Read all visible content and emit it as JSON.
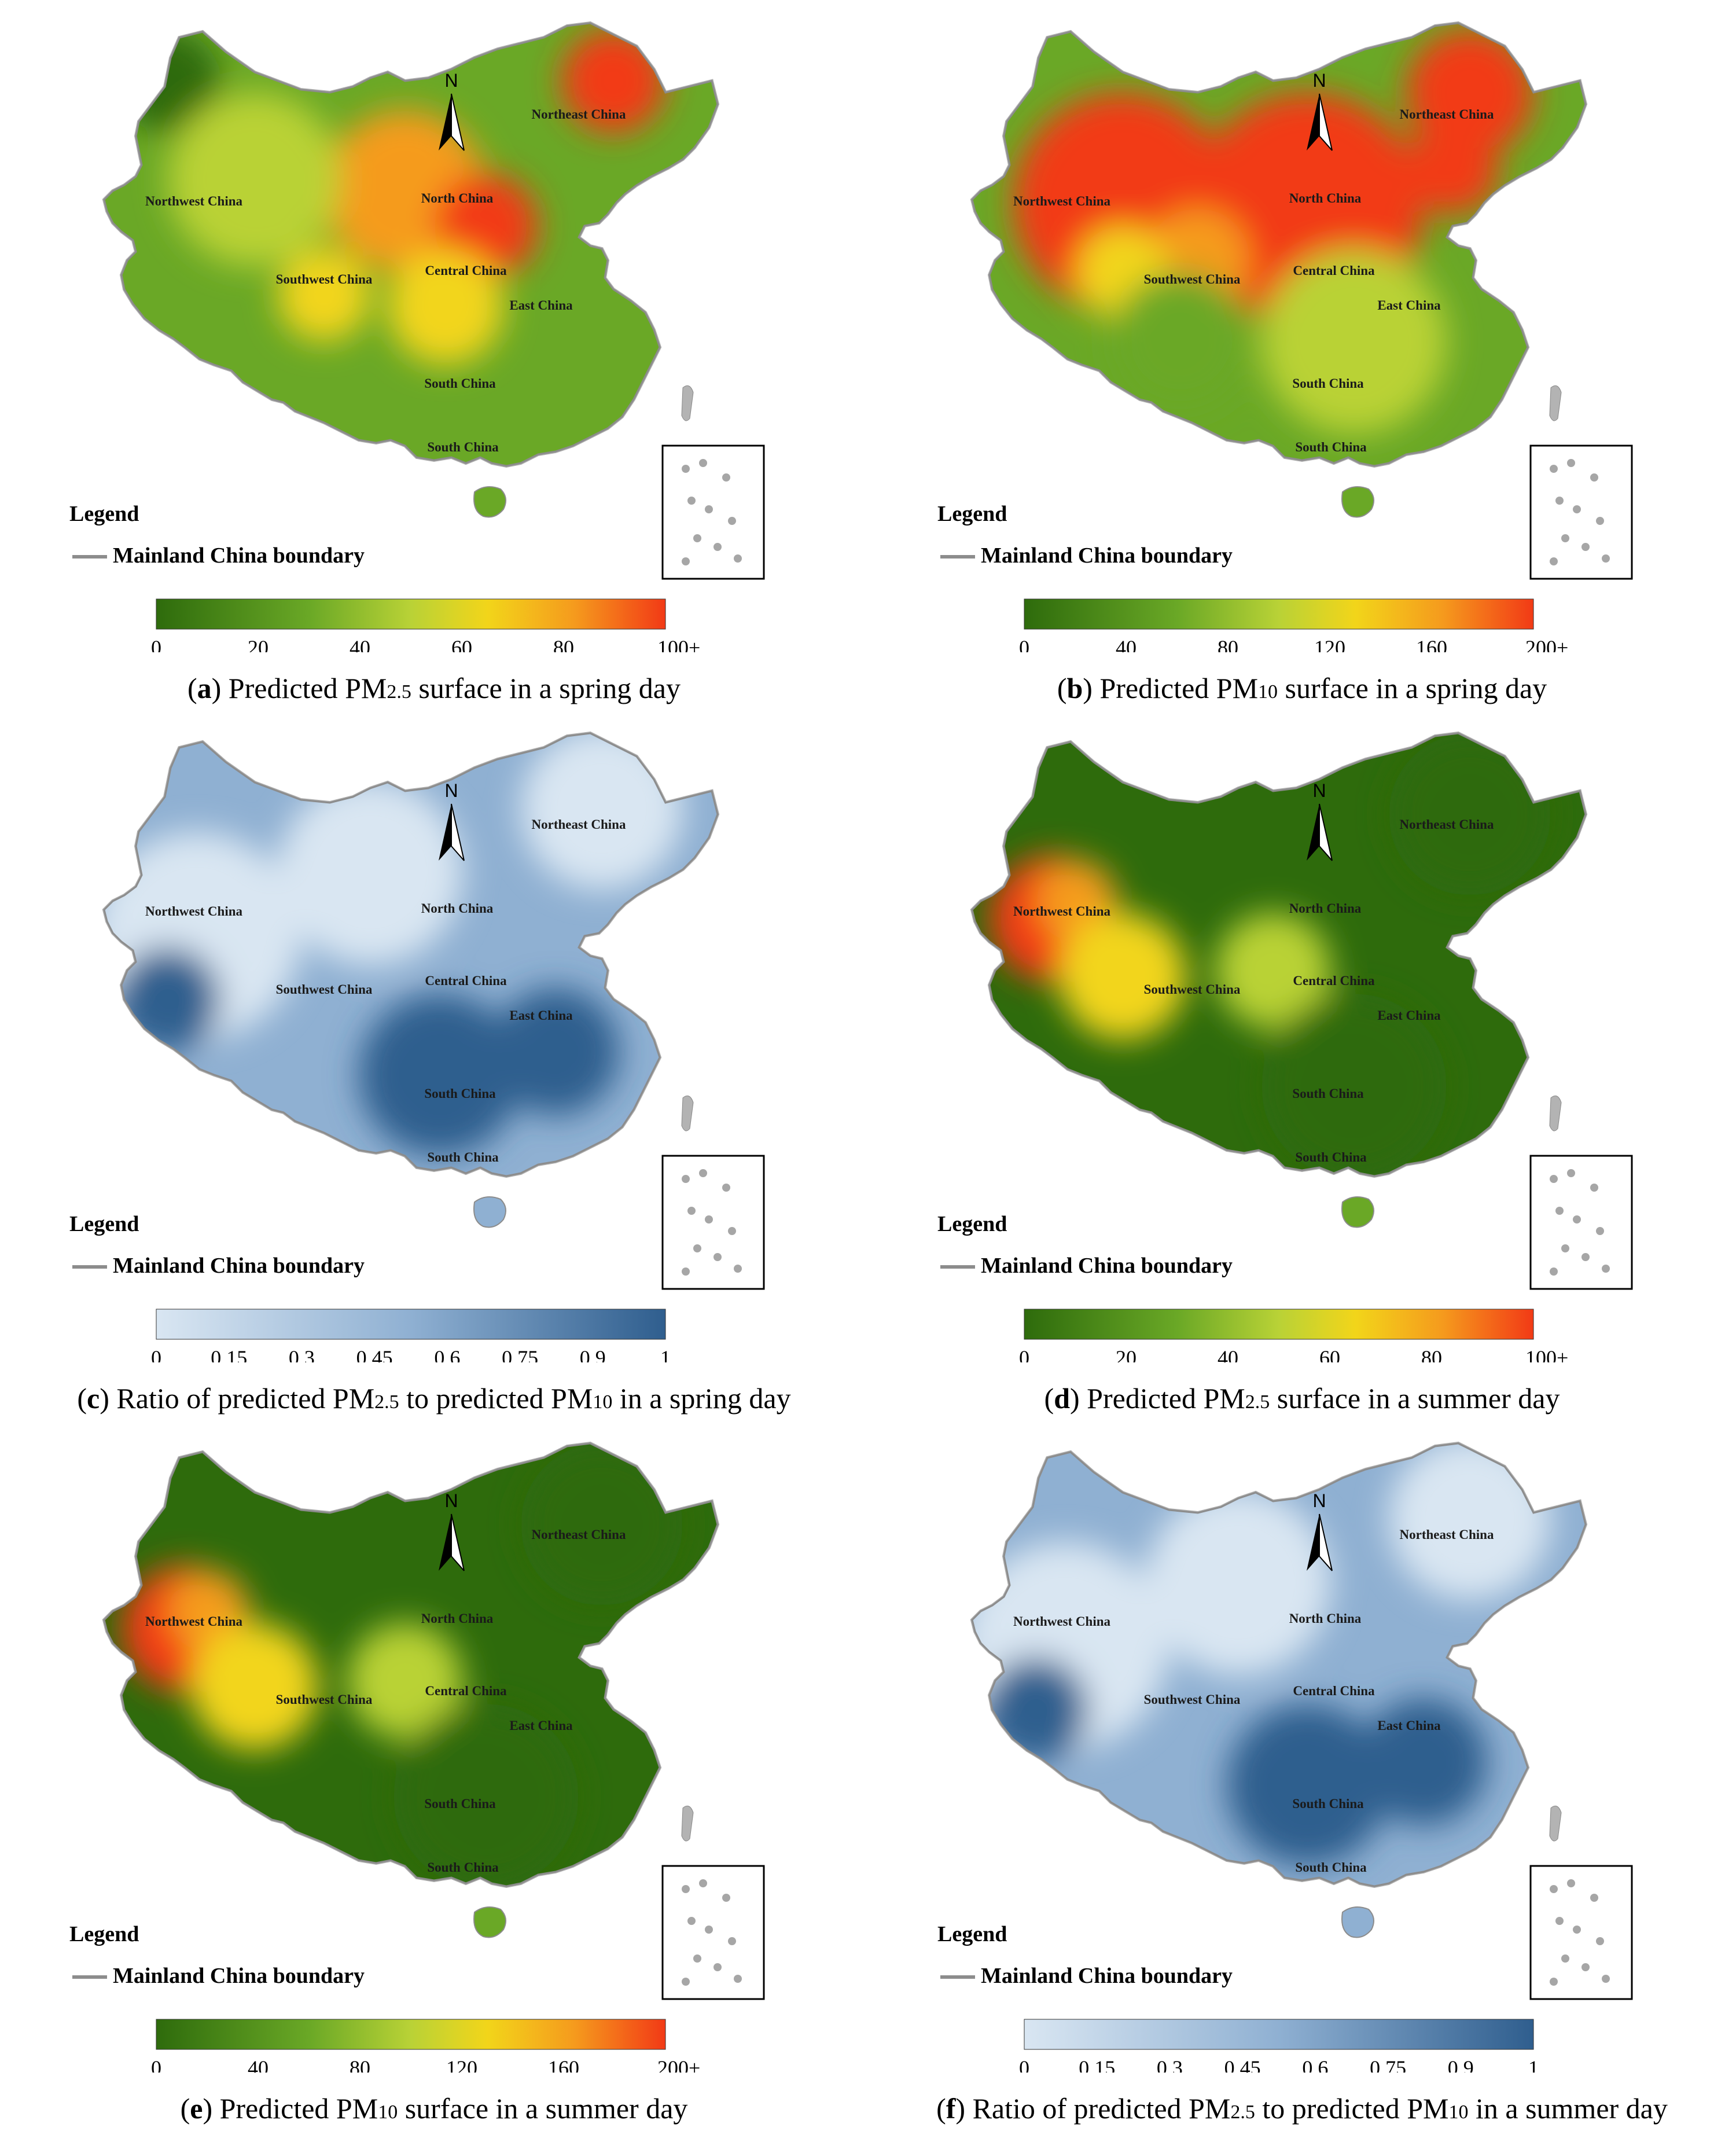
{
  "panels": [
    {
      "id": "a",
      "letter": "a",
      "caption_pre": "Predicted PM",
      "caption_sub": "2.5",
      "caption_mid": " surface in a spring day",
      "caption_sub2": "",
      "caption_post": "",
      "ramp": "green-red",
      "ticks": [
        "0",
        "20",
        "40",
        "60",
        "80",
        "100+"
      ],
      "region_labels": [
        "Northeast China",
        "Northwest China",
        "North China",
        "Southwest China",
        "Central China",
        "East China",
        "South China",
        "South China"
      ],
      "hot_level": "medium"
    },
    {
      "id": "b",
      "letter": "b",
      "caption_pre": "Predicted PM",
      "caption_sub": "10",
      "caption_mid": " surface in a spring day",
      "caption_sub2": "",
      "caption_post": "",
      "ramp": "green-red",
      "ticks": [
        "0",
        "40",
        "80",
        "120",
        "160",
        "200+"
      ],
      "region_labels": [
        "Northeast China",
        "Northwest China",
        "North China",
        "Southwest China",
        "Central China",
        "East China",
        "South China",
        "South China"
      ],
      "hot_level": "high"
    },
    {
      "id": "c",
      "letter": "c",
      "caption_pre": "Ratio of predicted PM",
      "caption_sub": "2.5",
      "caption_mid": " to predicted PM",
      "caption_sub2": "10",
      "caption_post": " in a spring day",
      "ramp": "blue",
      "ticks": [
        "0",
        "0.15",
        "0.3",
        "0.45",
        "0.6",
        "0.75",
        "0.9",
        "1"
      ],
      "region_labels": [
        "Northeast China",
        "Northwest China",
        "North China",
        "Southwest China",
        "Central China",
        "East China",
        "South China",
        "South China"
      ],
      "hot_level": "none"
    },
    {
      "id": "d",
      "letter": "d",
      "caption_pre": "Predicted PM",
      "caption_sub": "2.5",
      "caption_mid": " surface in a summer day",
      "caption_sub2": "",
      "caption_post": "",
      "ramp": "green-red",
      "ticks": [
        "0",
        "20",
        "40",
        "60",
        "80",
        "100+"
      ],
      "region_labels": [
        "Northeast China",
        "Northwest China",
        "North China",
        "Southwest China",
        "Central China",
        "East China",
        "South China",
        "South China"
      ],
      "hot_level": "low"
    },
    {
      "id": "e",
      "letter": "e",
      "caption_pre": "Predicted PM",
      "caption_sub": "10",
      "caption_mid": " surface in a summer day",
      "caption_sub2": "",
      "caption_post": "",
      "ramp": "green-red",
      "ticks": [
        "0",
        "40",
        "80",
        "120",
        "160",
        "200+"
      ],
      "region_labels": [
        "Northeast China",
        "Northwest China",
        "North China",
        "Southwest China",
        "Central China",
        "East China",
        "South China",
        "South China"
      ],
      "hot_level": "low"
    },
    {
      "id": "f",
      "letter": "f",
      "caption_pre": "Ratio of predicted PM",
      "caption_sub": "2.5",
      "caption_mid": " to predicted PM",
      "caption_sub2": "10",
      "caption_post": " in a summer day",
      "ramp": "blue",
      "ticks": [
        "0",
        "0.15",
        "0.3",
        "0.45",
        "0.6",
        "0.75",
        "0.9",
        "1"
      ],
      "region_labels": [
        "Northeast China",
        "Northwest China",
        "North China",
        "Southwest China",
        "Central China",
        "East China",
        "South China",
        "South China"
      ],
      "hot_level": "none"
    }
  ],
  "legend": {
    "title": "Legend",
    "boundary_label": "Mainland China boundary",
    "north_arrow_label": "N"
  },
  "colors": {
    "green_dark": "#2e6b0c",
    "green_mid": "#6aa826",
    "yellow_green": "#b9d236",
    "yellow": "#f2d51a",
    "orange": "#f59b1d",
    "red": "#f23a16",
    "blue_light": "#d9e6f2",
    "blue_mid": "#8fb0d2",
    "blue_dark": "#2f5e8e",
    "boundary_gray": "#8c8c8c"
  }
}
